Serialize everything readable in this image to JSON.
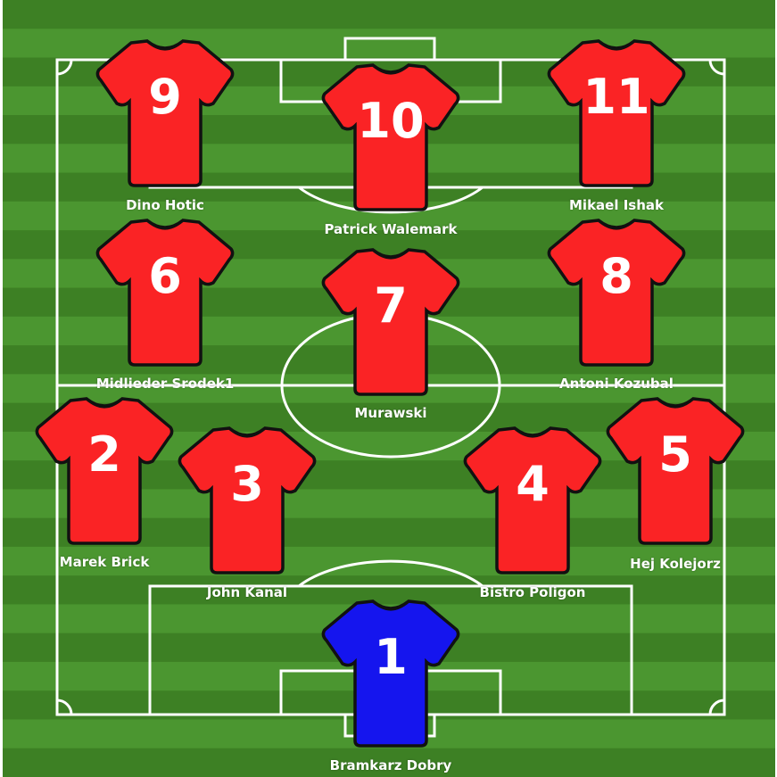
{
  "colors": {
    "field_stripe_dark": "#3d8024",
    "field_stripe_light": "#4b9630",
    "line": "#ffffff",
    "outfield_shirt": "#fa2325",
    "goalkeeper_shirt": "#1515ee"
  },
  "players": [
    {
      "number": "9",
      "name": "Dino Hotic",
      "role": "outfield"
    },
    {
      "number": "10",
      "name": "Patrick Walemark",
      "role": "outfield"
    },
    {
      "number": "11",
      "name": "Mikael Ishak",
      "role": "outfield"
    },
    {
      "number": "6",
      "name": "Midlieder Srodek1",
      "role": "outfield"
    },
    {
      "number": "7",
      "name": "Murawski",
      "role": "outfield"
    },
    {
      "number": "8",
      "name": "Antoni Kozubal",
      "role": "outfield"
    },
    {
      "number": "2",
      "name": "Marek Brick",
      "role": "outfield"
    },
    {
      "number": "3",
      "name": "John Kanal",
      "role": "outfield"
    },
    {
      "number": "4",
      "name": "Bistro Poligon",
      "role": "outfield"
    },
    {
      "number": "5",
      "name": "Hej Kolejorz",
      "role": "outfield"
    },
    {
      "number": "1",
      "name": "Bramkarz Dobry",
      "role": "goalkeeper"
    }
  ]
}
